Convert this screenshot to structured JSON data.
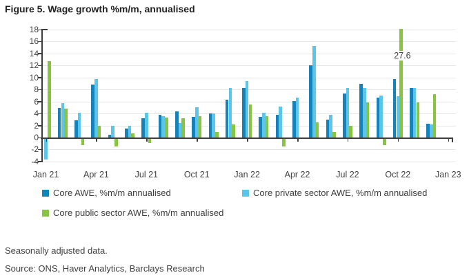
{
  "title": "Figure 5. Wage growth %m/m, annualised",
  "chart_data": {
    "type": "bar",
    "categories": [
      "Jan 21",
      "Feb 21",
      "Mar 21",
      "Apr 21",
      "May 21",
      "Jun 21",
      "Jul 21",
      "Aug 21",
      "Sep 21",
      "Oct 21",
      "Nov 21",
      "Dec 21",
      "Jan 22",
      "Feb 22",
      "Mar 22",
      "Apr 22",
      "May 22",
      "Jun 22",
      "Jul 22",
      "Aug 22",
      "Sep 22",
      "Oct 22",
      "Nov 22",
      "Dec 22"
    ],
    "x_tick_labels": [
      "Jan 21",
      "Apr 21",
      "Jul 21",
      "Oct 21",
      "Jan 22",
      "Apr 22",
      "Jul 22",
      "Oct 22",
      "Jan 23"
    ],
    "series": [
      {
        "name": "Core AWE, %m/m annualised",
        "color": "#1583ba",
        "values": [
          0,
          4.9,
          2.9,
          8.8,
          0.5,
          1.5,
          3.2,
          3.8,
          4.4,
          3.4,
          4.0,
          6.3,
          8.3,
          3.4,
          3.8,
          6.1,
          12.0,
          3.0,
          7.3,
          8.9,
          6.7,
          9.7,
          8.3,
          2.3
        ]
      },
      {
        "name": "Core private sector AWE, %m/m annualised",
        "color": "#5cc6e9",
        "values": [
          -3.6,
          5.7,
          4.1,
          9.8,
          2.0,
          2.0,
          4.1,
          3.6,
          2.4,
          5.0,
          4.0,
          8.3,
          9.4,
          4.1,
          5.2,
          6.7,
          15.3,
          3.8,
          8.2,
          8.3,
          7.0,
          6.9,
          8.3,
          2.2
        ]
      },
      {
        "name": "Core public sector AWE, %m/m annualised",
        "color": "#87c440",
        "values": [
          12.7,
          4.8,
          -1.2,
          1.9,
          -1.4,
          0.7,
          -0.8,
          3.3,
          3.2,
          3.5,
          0.9,
          2.2,
          5.5,
          3.6,
          -1.4,
          0,
          2.5,
          0.9,
          2.0,
          5.8,
          -1.2,
          27.6,
          5.8,
          7.2
        ]
      }
    ],
    "ylim": [
      -4,
      18
    ],
    "ytick_step": 2,
    "grid": true,
    "legend_position": "bottom",
    "annotation": {
      "text": "27.6",
      "category": "Oct 22",
      "series": 2,
      "clipped_at": 18
    }
  },
  "footnotes": {
    "note": "Seasonally adjusted data.",
    "source": "Source: ONS, Haver Analytics, Barclays Research"
  }
}
